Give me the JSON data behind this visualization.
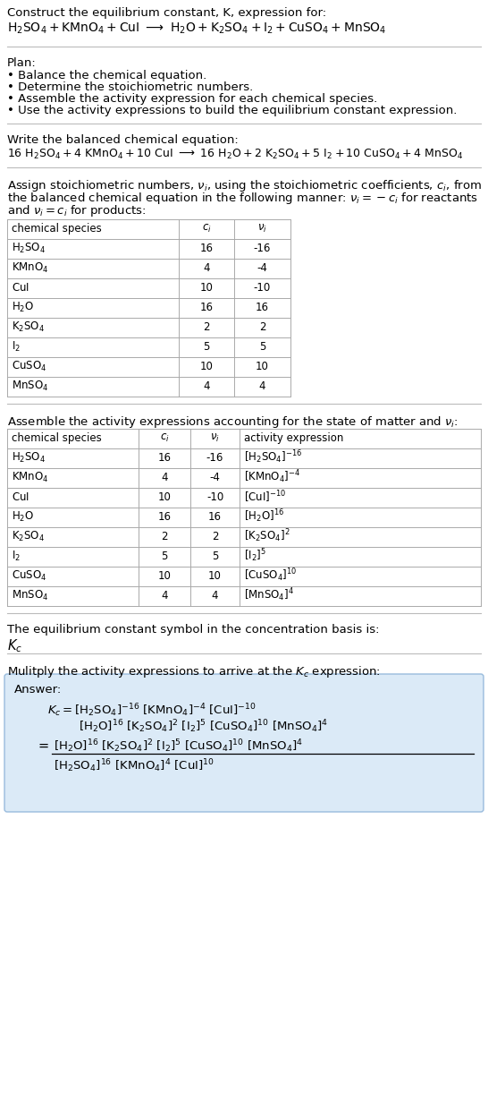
{
  "title_line1": "Construct the equilibrium constant, K, expression for:",
  "plan_header": "Plan:",
  "plan_items": [
    "• Balance the chemical equation.",
    "• Determine the stoichiometric numbers.",
    "• Assemble the activity expression for each chemical species.",
    "• Use the activity expressions to build the equilibrium constant expression."
  ],
  "balanced_header": "Write the balanced chemical equation:",
  "table1_rows": [
    [
      "H_2SO_4",
      "16",
      "-16"
    ],
    [
      "KMnO_4",
      "4",
      "-4"
    ],
    [
      "CuI",
      "10",
      "-10"
    ],
    [
      "H_2O",
      "16",
      "16"
    ],
    [
      "K_2SO_4",
      "2",
      "2"
    ],
    [
      "I_2",
      "5",
      "5"
    ],
    [
      "CuSO_4",
      "10",
      "10"
    ],
    [
      "MnSO_4",
      "4",
      "4"
    ]
  ],
  "act_exprs": [
    "[H_2SO_4]^{-16}",
    "[KMnO_4]^{-4}",
    "[CuI]^{-10}",
    "[H_2O]^{16}",
    "[K_2SO_4]^{2}",
    "[I_2]^{5}",
    "[CuSO_4]^{10}",
    "[MnSO_4]^{4}"
  ],
  "ci_vals": [
    "16",
    "4",
    "10",
    "16",
    "2",
    "5",
    "10",
    "4"
  ],
  "nu_vals": [
    "-16",
    "-4",
    "-10",
    "16",
    "2",
    "5",
    "10",
    "4"
  ],
  "kc_text": "The equilibrium constant symbol in the concentration basis is:",
  "multiply_text": "Mulitply the activity expressions to arrive at the $K_c$ expression:",
  "answer_box_color": "#dbeaf7",
  "bg_color": "#ffffff",
  "table_border_color": "#aaaaaa",
  "font_size": 9.5
}
